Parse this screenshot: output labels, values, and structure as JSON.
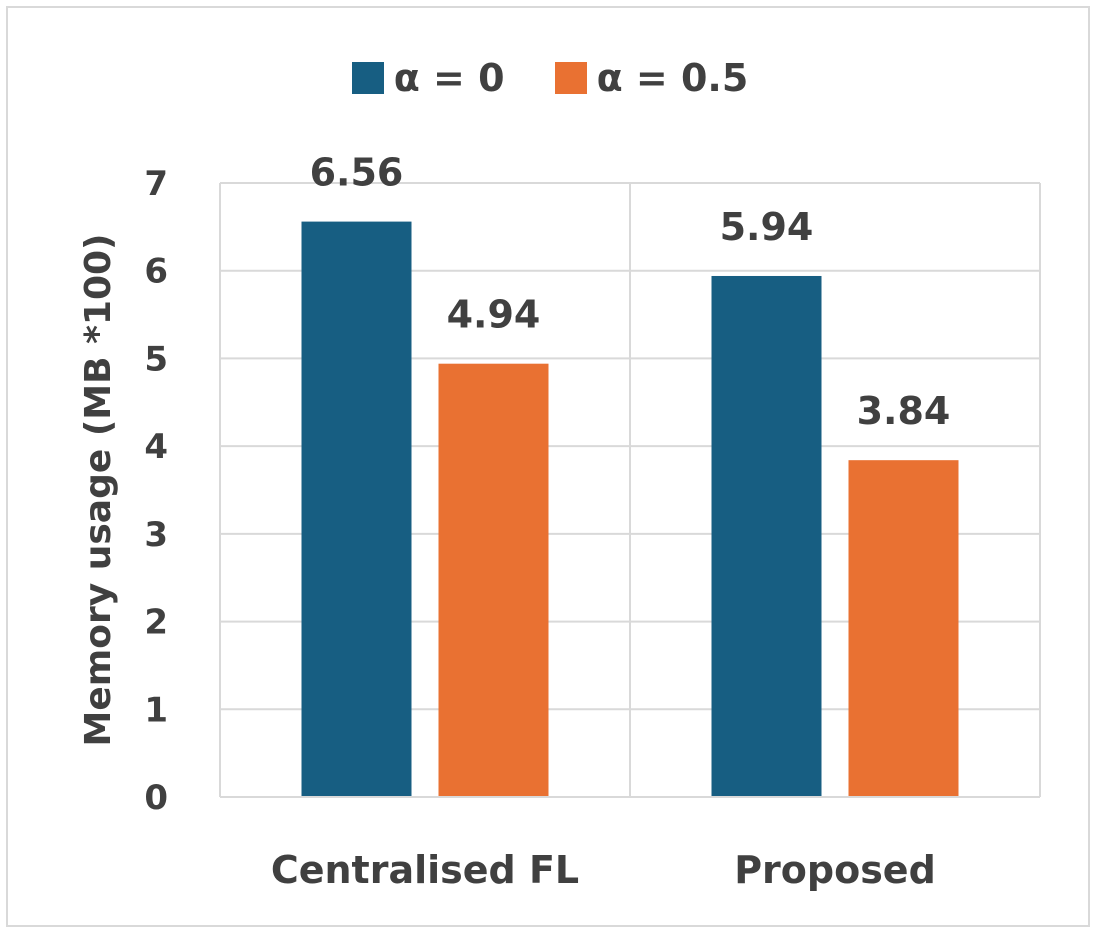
{
  "chart_data": {
    "type": "bar",
    "title": "",
    "xlabel": "",
    "ylabel": "Memory usage (MB *100)",
    "categories": [
      "Centralised FL",
      "Proposed"
    ],
    "series": [
      {
        "name": "α = 0",
        "color": "#175e82",
        "values": [
          6.56,
          5.94
        ],
        "labels": [
          "6.56",
          "5.94"
        ]
      },
      {
        "name": "α = 0.5",
        "color": "#e97132",
        "values": [
          4.94,
          3.84
        ],
        "labels": [
          "4.94",
          "3.84"
        ]
      }
    ],
    "ylim": [
      0,
      7
    ],
    "yticks": [
      "0",
      "1",
      "2",
      "3",
      "4",
      "5",
      "6",
      "7"
    ],
    "grid": true,
    "legend_position": "top-center"
  }
}
